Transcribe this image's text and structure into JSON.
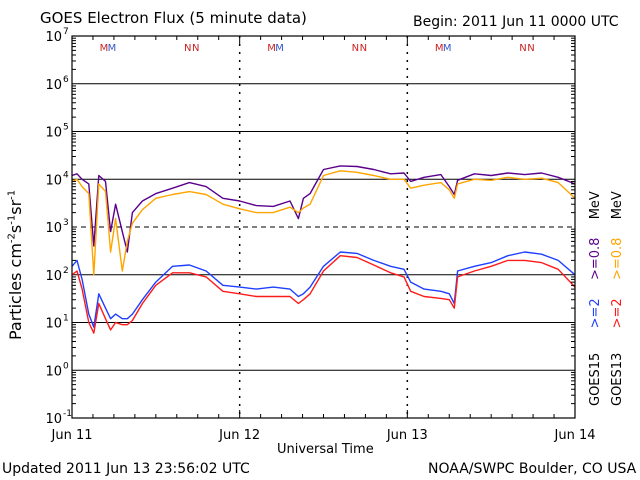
{
  "header": {
    "title": "GOES Electron Flux (5 minute data)",
    "begin": "Begin: 2011 Jun 11 0000 UTC"
  },
  "footer": {
    "updated": "Updated 2011 Jun 13 23:56:02 UTC",
    "credit": "NOAA/SWPC Boulder, CO USA"
  },
  "colors": {
    "goes15_2mev": "#1f3fff",
    "goes13_2mev": "#ff1a1a",
    "goes15_08mev": "#5a008c",
    "goes13_08mev": "#ffa500",
    "markers_m": "#3355cc",
    "markers_n": "#cc2222"
  },
  "legend": {
    "goes15": "GOES15",
    "goes13": "GOES13",
    "g15_2": ">=2",
    "g15_08": ">=0.8",
    "g13_2": ">=2",
    "g13_08": ">=0.8",
    "mev": "MeV"
  },
  "chart_data": {
    "type": "line",
    "title": "GOES Electron Flux (5 minute data)",
    "xlabel": "Universal Time",
    "ylabel": "Particles cm-2s-1sr-1",
    "x_unit": "days since 2011 Jun 11 00:00 UTC",
    "xlim": [
      0,
      3
    ],
    "ylim_log10": [
      -1,
      7
    ],
    "y_scale": "log",
    "x_ticks": [
      {
        "x": 0,
        "label": "Jun 11"
      },
      {
        "x": 1,
        "label": "Jun 12"
      },
      {
        "x": 2,
        "label": "Jun 13"
      },
      {
        "x": 3,
        "label": "Jun 14"
      }
    ],
    "y_ticks": [
      {
        "exp": 7,
        "label": "7"
      },
      {
        "exp": 6,
        "label": "6"
      },
      {
        "exp": 5,
        "label": "5"
      },
      {
        "exp": 4,
        "label": "4"
      },
      {
        "exp": 3,
        "label": "3"
      },
      {
        "exp": 2,
        "label": "2"
      },
      {
        "exp": 1,
        "label": "1"
      },
      {
        "exp": 0,
        "label": "0"
      },
      {
        "exp": -1,
        "label": "-1"
      }
    ],
    "threshold_log10": 3,
    "orbit_markers": [
      {
        "x": 0.22,
        "label": "M"
      },
      {
        "x": 0.72,
        "label": "N"
      },
      {
        "x": 1.22,
        "label": "M"
      },
      {
        "x": 1.72,
        "label": "N"
      },
      {
        "x": 2.22,
        "label": "M"
      },
      {
        "x": 2.72,
        "label": "N"
      }
    ],
    "series": [
      {
        "name": "GOES15 >=0.8 MeV",
        "color_key": "goes15_08mev",
        "x": [
          0.0,
          0.03,
          0.06,
          0.1,
          0.13,
          0.16,
          0.2,
          0.23,
          0.26,
          0.3,
          0.33,
          0.36,
          0.42,
          0.5,
          0.6,
          0.7,
          0.8,
          0.9,
          1.0,
          1.1,
          1.2,
          1.3,
          1.35,
          1.38,
          1.42,
          1.5,
          1.6,
          1.7,
          1.8,
          1.9,
          1.98,
          2.02,
          2.1,
          2.2,
          2.25,
          2.28,
          2.3,
          2.4,
          2.5,
          2.6,
          2.7,
          2.8,
          2.9,
          3.0
        ],
        "y": [
          12000,
          13000,
          10000,
          8000,
          400,
          12000,
          9000,
          800,
          3000,
          800,
          300,
          2000,
          3500,
          5000,
          6500,
          8500,
          7000,
          4000,
          3500,
          2800,
          2700,
          3500,
          1500,
          4000,
          5000,
          16000,
          19000,
          18500,
          16000,
          13000,
          13500,
          9000,
          11000,
          12500,
          7000,
          4800,
          9500,
          13000,
          12000,
          13500,
          12500,
          13500,
          11000,
          8000
        ]
      },
      {
        "name": "GOES13 >=0.8 MeV",
        "color_key": "goes13_08mev",
        "x": [
          0.0,
          0.03,
          0.06,
          0.1,
          0.13,
          0.16,
          0.2,
          0.23,
          0.26,
          0.3,
          0.33,
          0.36,
          0.42,
          0.5,
          0.6,
          0.7,
          0.8,
          0.9,
          1.0,
          1.1,
          1.2,
          1.3,
          1.35,
          1.38,
          1.42,
          1.5,
          1.6,
          1.7,
          1.8,
          1.9,
          1.98,
          2.02,
          2.1,
          2.2,
          2.25,
          2.28,
          2.3,
          2.4,
          2.5,
          2.6,
          2.7,
          2.8,
          2.9,
          3.0
        ],
        "y": [
          9000,
          10000,
          7000,
          5000,
          100,
          8000,
          5500,
          300,
          1500,
          120,
          500,
          1200,
          2300,
          4000,
          4800,
          5500,
          4800,
          3000,
          2400,
          2000,
          2000,
          2600,
          2000,
          2500,
          3000,
          12000,
          15000,
          14000,
          12000,
          10000,
          10000,
          6500,
          7500,
          8500,
          6000,
          4000,
          8000,
          10000,
          9500,
          11000,
          10000,
          10500,
          8500,
          4000
        ]
      },
      {
        "name": "GOES15 >=2 MeV",
        "color_key": "goes15_2mev",
        "x": [
          0.0,
          0.03,
          0.06,
          0.1,
          0.13,
          0.16,
          0.2,
          0.23,
          0.26,
          0.3,
          0.33,
          0.36,
          0.42,
          0.5,
          0.6,
          0.7,
          0.8,
          0.9,
          1.0,
          1.1,
          1.2,
          1.3,
          1.35,
          1.38,
          1.42,
          1.5,
          1.6,
          1.7,
          1.8,
          1.9,
          1.98,
          2.02,
          2.1,
          2.2,
          2.25,
          2.28,
          2.3,
          2.4,
          2.5,
          2.6,
          2.7,
          2.8,
          2.9,
          3.0
        ],
        "y": [
          150,
          200,
          80,
          15,
          8,
          40,
          20,
          12,
          15,
          12,
          12,
          15,
          30,
          70,
          150,
          160,
          120,
          60,
          55,
          50,
          55,
          50,
          35,
          40,
          55,
          150,
          300,
          280,
          200,
          150,
          130,
          70,
          50,
          45,
          40,
          25,
          120,
          150,
          180,
          250,
          300,
          270,
          200,
          100
        ]
      },
      {
        "name": "GOES13 >=2 MeV",
        "color_key": "goes13_2mev",
        "x": [
          0.0,
          0.03,
          0.06,
          0.1,
          0.13,
          0.16,
          0.2,
          0.23,
          0.26,
          0.3,
          0.33,
          0.36,
          0.42,
          0.5,
          0.6,
          0.7,
          0.8,
          0.9,
          1.0,
          1.1,
          1.2,
          1.3,
          1.35,
          1.38,
          1.42,
          1.5,
          1.6,
          1.7,
          1.8,
          1.9,
          1.98,
          2.02,
          2.1,
          2.2,
          2.25,
          2.28,
          2.3,
          2.4,
          2.5,
          2.6,
          2.7,
          2.8,
          2.9,
          3.0
        ],
        "y": [
          100,
          120,
          50,
          10,
          6,
          25,
          12,
          7,
          10,
          9,
          9,
          11,
          25,
          60,
          110,
          110,
          90,
          45,
          40,
          35,
          35,
          35,
          25,
          30,
          40,
          120,
          250,
          230,
          160,
          110,
          90,
          45,
          35,
          32,
          30,
          20,
          90,
          120,
          150,
          200,
          200,
          180,
          130,
          55
        ]
      }
    ]
  }
}
